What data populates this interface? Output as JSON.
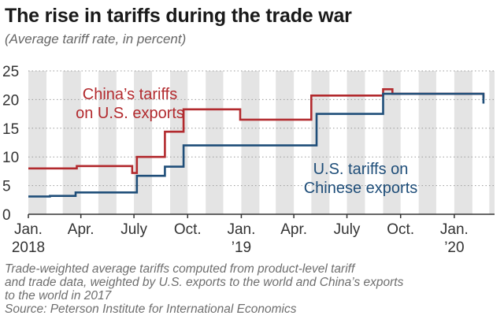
{
  "header": {
    "title": "The rise in tariffs during the trade war",
    "subtitle": "(Average tariff rate, in percent)"
  },
  "footer": {
    "note_lines": [
      "Trade-weighted average tariffs computed from product-level tariff",
      "and trade data, weighted by U.S. exports to the world and China’s exports",
      "to the world in 2017"
    ],
    "source": "Source: Peterson Institute for International Economics"
  },
  "chart_data": {
    "type": "line",
    "ylim": [
      0,
      25
    ],
    "yticks": [
      0,
      5,
      10,
      15,
      20,
      25
    ],
    "xlim": [
      "2018-01-01",
      "2020-03-10"
    ],
    "x_ticks": [
      {
        "date": "2018-01-01",
        "label": "Jan.",
        "sub": "2018"
      },
      {
        "date": "2018-04-01",
        "label": "Apr.",
        "sub": ""
      },
      {
        "date": "2018-07-01",
        "label": "July",
        "sub": ""
      },
      {
        "date": "2018-10-01",
        "label": "Oct.",
        "sub": ""
      },
      {
        "date": "2019-01-01",
        "label": "Jan.",
        "sub": "’19"
      },
      {
        "date": "2019-04-01",
        "label": "Apr.",
        "sub": ""
      },
      {
        "date": "2019-07-01",
        "label": "July",
        "sub": ""
      },
      {
        "date": "2019-10-01",
        "label": "Oct.",
        "sub": ""
      },
      {
        "date": "2020-01-01",
        "label": "Jan.",
        "sub": "’20"
      }
    ],
    "grid": "dotted horizontal, shaded monthly bands",
    "series": [
      {
        "name": "China’s tariffs on U.S. exports",
        "label_lines": [
          "China’s tariffs",
          "on U.S. exports"
        ],
        "color": "#b22a2e",
        "points": [
          [
            "2018-01-01",
            8.0
          ],
          [
            "2018-03-25",
            8.0
          ],
          [
            "2018-03-25",
            8.4
          ],
          [
            "2018-06-28",
            8.4
          ],
          [
            "2018-06-28",
            7.2
          ],
          [
            "2018-07-06",
            7.2
          ],
          [
            "2018-07-06",
            10.0
          ],
          [
            "2018-08-23",
            10.0
          ],
          [
            "2018-08-23",
            14.4
          ],
          [
            "2018-09-24",
            14.4
          ],
          [
            "2018-09-24",
            18.3
          ],
          [
            "2018-12-30",
            18.3
          ],
          [
            "2018-12-30",
            16.5
          ],
          [
            "2019-05-01",
            16.5
          ],
          [
            "2019-05-01",
            20.7
          ],
          [
            "2019-09-01",
            20.7
          ],
          [
            "2019-09-01",
            21.8
          ],
          [
            "2019-09-17",
            21.8
          ],
          [
            "2019-09-17",
            21.0
          ],
          [
            "2020-02-20",
            21.0
          ],
          [
            "2020-02-20",
            20.3
          ]
        ]
      },
      {
        "name": "U.S. tariffs on Chinese exports",
        "label_lines": [
          "U.S. tariffs on",
          "Chinese exports"
        ],
        "color": "#1f4e79",
        "points": [
          [
            "2018-01-01",
            3.1
          ],
          [
            "2018-02-07",
            3.1
          ],
          [
            "2018-02-07",
            3.2
          ],
          [
            "2018-03-23",
            3.2
          ],
          [
            "2018-03-23",
            3.8
          ],
          [
            "2018-07-06",
            3.8
          ],
          [
            "2018-07-06",
            6.7
          ],
          [
            "2018-08-23",
            6.7
          ],
          [
            "2018-08-23",
            8.3
          ],
          [
            "2018-09-24",
            8.3
          ],
          [
            "2018-09-24",
            12.0
          ],
          [
            "2019-05-10",
            12.0
          ],
          [
            "2019-05-10",
            17.5
          ],
          [
            "2019-09-01",
            17.5
          ],
          [
            "2019-09-01",
            21.0
          ],
          [
            "2020-02-20",
            21.0
          ],
          [
            "2020-02-20",
            19.3
          ]
        ]
      }
    ]
  }
}
